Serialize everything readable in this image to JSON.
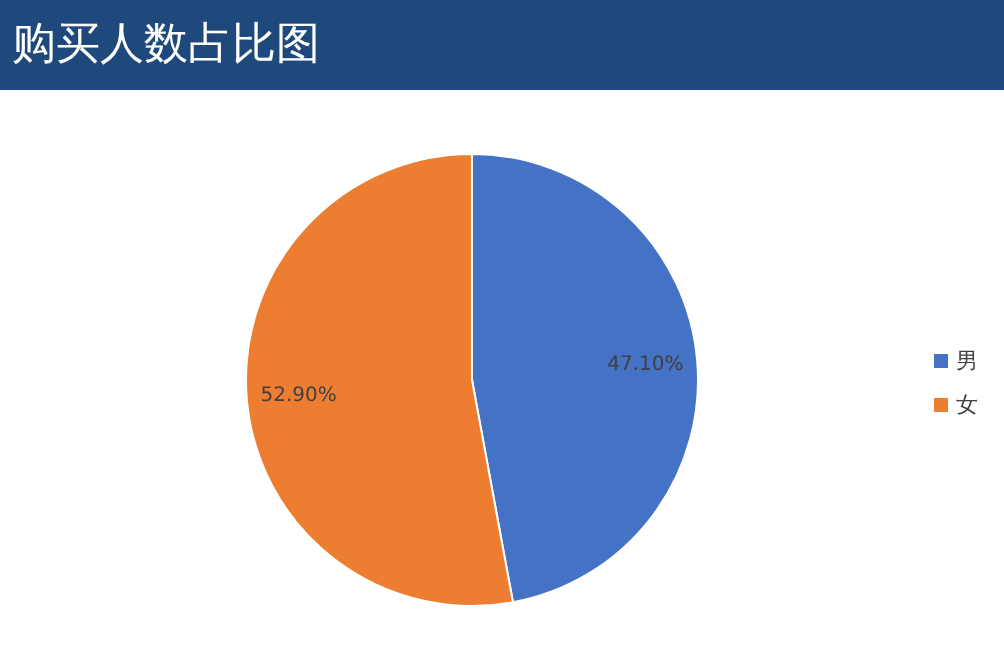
{
  "chart_data": {
    "type": "pie",
    "title": "购买人数占比图",
    "categories": [
      "男",
      "女"
    ],
    "values": [
      47.1,
      52.9
    ],
    "colors": [
      "#4472c4",
      "#ed7d31"
    ],
    "value_labels": [
      "47.10%",
      "52.90%"
    ],
    "legend": "right"
  }
}
